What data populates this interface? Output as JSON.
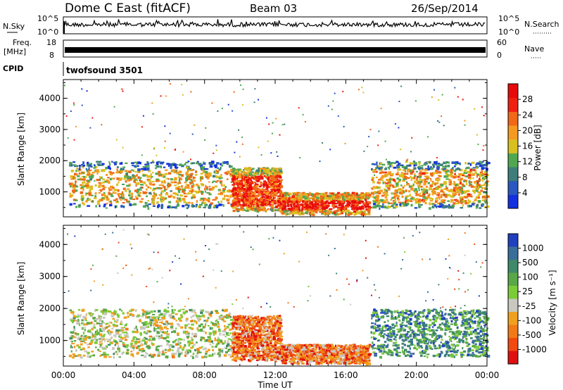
{
  "header": {
    "title": "Dome C East (fitACF)",
    "beam": "Beam 03",
    "date": "26/Sep/2014"
  },
  "strips": {
    "nsky_label": "N.Sky",
    "nsky_ticks": [
      "10^5",
      "10^0"
    ],
    "nsearch_label": "N.Search",
    "nsearch_ticks": [
      "10^5",
      "10^0"
    ],
    "freq_label": "Freq.",
    "freq_unit": "[MHz]",
    "freq_ticks": [
      "18",
      "8"
    ],
    "nave_label": "Nave",
    "nave_ticks": [
      "60",
      "0"
    ],
    "cpid_label": "CPID",
    "cpid_value": "twofsound 3501"
  },
  "chart_data": [
    {
      "type": "heatmap",
      "name": "power-panel",
      "ylabel": "Slant Range [km]",
      "yticks": [
        1000,
        2000,
        3000,
        4000
      ],
      "ylim": [
        200,
        4600
      ],
      "xlim": [
        0,
        24
      ],
      "colorbar": {
        "label": "Power [dB]",
        "ticks": [
          "4",
          "8",
          "12",
          "16",
          "20",
          "24",
          "28"
        ],
        "colors": [
          "#1530e0",
          "#2a58c0",
          "#3e7e7a",
          "#4fa850",
          "#d8c020",
          "#f59a20",
          "#f06818",
          "#f02010",
          "#e80a0a"
        ]
      },
      "regions": [
        {
          "t0": 0.3,
          "t1": 9.5,
          "r0": 500,
          "r1": 2000,
          "level": 0.55
        },
        {
          "t0": 9.5,
          "t1": 12.3,
          "r0": 400,
          "r1": 1800,
          "level": 0.85
        },
        {
          "t0": 12.3,
          "t1": 17.3,
          "r0": 300,
          "r1": 1000,
          "level": 0.95
        },
        {
          "t0": 17.4,
          "t1": 24,
          "r0": 500,
          "r1": 2000,
          "level": 0.6
        }
      ]
    },
    {
      "type": "heatmap",
      "name": "velocity-panel",
      "ylabel": "Slant Range [km]",
      "yticks": [
        1000,
        2000,
        3000,
        4000
      ],
      "ylim": [
        200,
        4600
      ],
      "xlim": [
        0,
        24
      ],
      "xticks": [
        "00:00",
        "04:00",
        "08:00",
        "12:00",
        "16:00",
        "20:00",
        "00:00"
      ],
      "xlabel": "Time UT",
      "colorbar": {
        "label": "Velocity [m s⁻¹]",
        "ticks": [
          "1000",
          "500",
          "100",
          "25",
          "-25",
          "-100",
          "-500",
          "-1000"
        ],
        "colors": [
          "#2040c0",
          "#3a6e9a",
          "#3e8a6a",
          "#58a848",
          "#7ccc38",
          "#c8c8c0",
          "#f0a020",
          "#f07a18",
          "#f04a10",
          "#e01010"
        ]
      },
      "regions": [
        {
          "t0": 0.3,
          "t1": 9.5,
          "r0": 500,
          "r1": 2000,
          "level": 0.5
        },
        {
          "t0": 9.5,
          "t1": 12.3,
          "r0": 400,
          "r1": 1800,
          "level": 0.8
        },
        {
          "t0": 12.3,
          "t1": 17.3,
          "r0": 300,
          "r1": 900,
          "level": 0.78
        },
        {
          "t0": 17.4,
          "t1": 24,
          "r0": 500,
          "r1": 2000,
          "level": 0.25
        }
      ]
    }
  ]
}
